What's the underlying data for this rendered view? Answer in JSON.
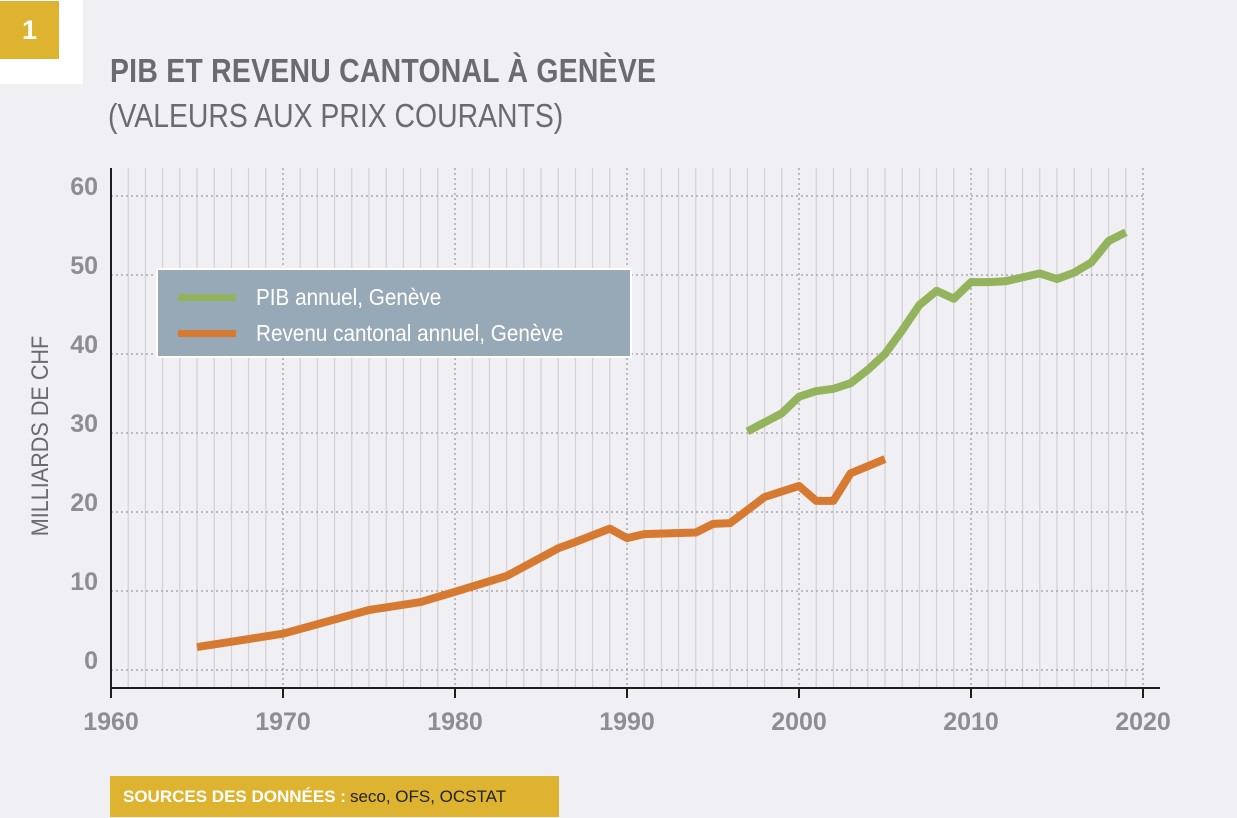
{
  "figure": {
    "number": "1",
    "title": "PIB ET REVENU CANTONAL À GENÈVE",
    "subtitle": "(VALEURS AUX PRIX COURANTS)"
  },
  "legend": {
    "items": [
      {
        "label": "PIB annuel, Genève",
        "color": "#93b35c"
      },
      {
        "label": "Revenu cantonal annuel, Genève",
        "color": "#d77a31"
      }
    ]
  },
  "sources": {
    "label": "SOURCES DES DONNÉES :",
    "value": "seco, OFS, OCSTAT"
  },
  "chart_data": {
    "type": "line",
    "title": "PIB ET REVENU CANTONAL À GENÈVE",
    "subtitle": "(VALEURS AUX PRIX COURANTS)",
    "xlabel": "",
    "ylabel": "MILLIARDS DE CHF",
    "xlim": [
      1960,
      2020
    ],
    "ylim": [
      0,
      60
    ],
    "xticks": [
      1960,
      1970,
      1980,
      1990,
      2000,
      2010,
      2020
    ],
    "yticks": [
      0,
      10,
      20,
      30,
      40,
      50,
      60
    ],
    "xtick_labels": [
      "1960",
      "1970",
      "1980",
      "1990",
      "2000",
      "2010",
      "2020"
    ],
    "ytick_labels": [
      "0",
      "10",
      "20",
      "30",
      "40",
      "50",
      "60"
    ],
    "grid": true,
    "legend_position": "top-left",
    "series": [
      {
        "name": "PIB annuel, Genève",
        "color": "#93b35c",
        "x": [
          1997,
          1999,
          2000,
          2001,
          2002,
          2003,
          2004,
          2005,
          2006,
          2007,
          2008,
          2009,
          2010,
          2011,
          2012,
          2013,
          2014,
          2015,
          2016,
          2017,
          2018,
          2019
        ],
        "y": [
          30.2,
          32.5,
          34.6,
          35.3,
          35.6,
          36.3,
          38.0,
          40.0,
          43.0,
          46.2,
          48.0,
          47.0,
          49.1,
          49.1,
          49.2,
          49.7,
          50.2,
          49.5,
          50.3,
          51.6,
          54.3,
          55.4
        ]
      },
      {
        "name": "Revenu cantonal annuel, Genève",
        "color": "#d77a31",
        "x": [
          1965,
          1970,
          1975,
          1978,
          1980,
          1983,
          1986,
          1987,
          1989,
          1990,
          1991,
          1994,
          1995,
          1996,
          1998,
          2000,
          2001,
          2002,
          2003,
          2005
        ],
        "y": [
          2.9,
          4.6,
          7.6,
          8.6,
          9.9,
          11.9,
          15.4,
          16.2,
          17.9,
          16.7,
          17.2,
          17.4,
          18.5,
          18.6,
          21.9,
          23.3,
          21.4,
          21.4,
          24.9,
          26.7
        ]
      }
    ]
  }
}
